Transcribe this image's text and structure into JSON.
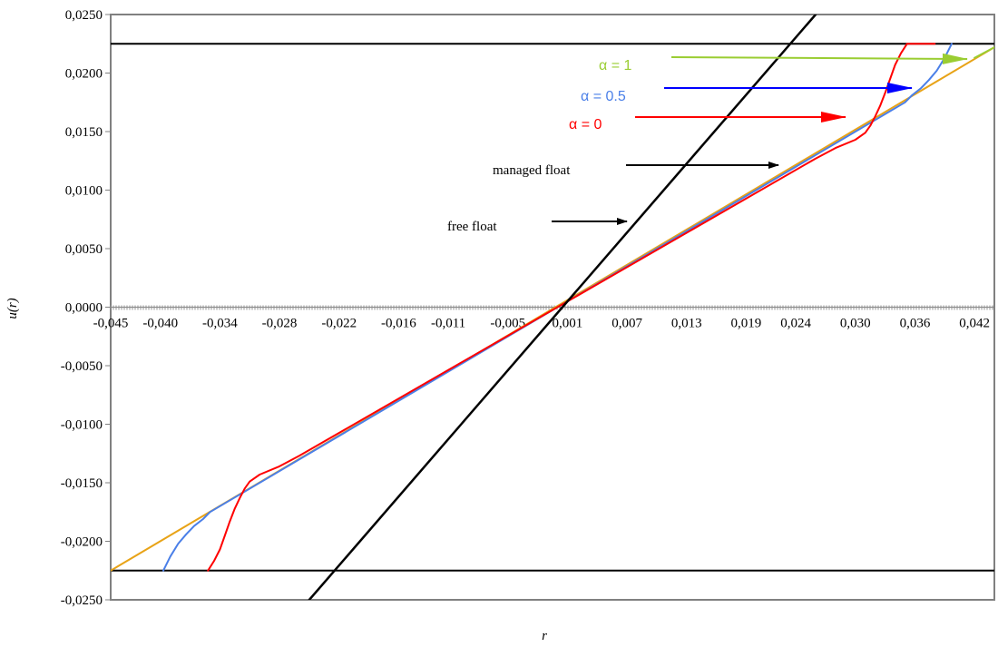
{
  "chart_data": {
    "type": "line",
    "title": "",
    "xlabel": "r",
    "ylabel": "u(r)",
    "xlim": [
      -0.045,
      0.044
    ],
    "ylim": [
      -0.025,
      0.025
    ],
    "x_tick_labels": [
      "-0,045",
      "-0,040",
      "-0,034",
      "-0,028",
      "-0,022",
      "-0,016",
      "-0,011",
      "-0,005",
      "0,001",
      "0,007",
      "0,013",
      "0,019",
      "0,024",
      "0,030",
      "0,036",
      "0,042"
    ],
    "x_ticks": [
      -0.045,
      -0.04,
      -0.034,
      -0.028,
      -0.022,
      -0.016,
      -0.011,
      -0.005,
      0.001,
      0.007,
      0.013,
      0.019,
      0.024,
      0.03,
      0.036,
      0.042
    ],
    "y_ticks": [
      0.025,
      0.02,
      0.015,
      0.01,
      0.005,
      0.0,
      -0.005,
      -0.01,
      -0.015,
      -0.02,
      -0.025
    ],
    "y_tick_labels": [
      "0,0250",
      "0,0200",
      "0,0150",
      "0,0100",
      "0,0050",
      "0,0000",
      "-0,0050",
      "-0,0100",
      "-0,0150",
      "-0,0200",
      "-0,0250"
    ],
    "grid": false,
    "series": [
      {
        "name": "free float",
        "color": "#000000",
        "x": [
          -0.025,
          0.026
        ],
        "y": [
          -0.025,
          0.025
        ]
      },
      {
        "name": "managed float",
        "color": "#E8A317",
        "x": [
          -0.045,
          0.044
        ],
        "y": [
          -0.0225,
          0.0222
        ]
      },
      {
        "name": "α = 0",
        "color": "#FF0000",
        "x": [
          -0.0352,
          -0.0346,
          -0.034,
          -0.0335,
          -0.033,
          -0.0325,
          -0.032,
          -0.0315,
          -0.031,
          -0.03,
          -0.028,
          -0.026,
          0.026,
          0.028,
          0.03,
          0.031,
          0.0315,
          0.032,
          0.0325,
          0.033,
          0.0335,
          0.034,
          0.0346,
          0.0352,
          0.038
        ],
        "y": [
          -0.0225,
          -0.0217,
          -0.0207,
          -0.0195,
          -0.0183,
          -0.0172,
          -0.0163,
          -0.0155,
          -0.0149,
          -0.0143,
          -0.0136,
          -0.0127,
          0.0127,
          0.0136,
          0.0143,
          0.0149,
          0.0155,
          0.0163,
          0.0172,
          0.0183,
          0.0195,
          0.0207,
          0.0217,
          0.0225,
          0.0225
        ]
      },
      {
        "name": "α = 0.5",
        "color": "#4A7FE8",
        "x": [
          -0.0397,
          -0.039,
          -0.0382,
          -0.0374,
          -0.0366,
          -0.0357,
          -0.035,
          0.035,
          0.0357,
          0.0366,
          0.0374,
          0.0382,
          0.039,
          0.0397
        ],
        "y": [
          -0.0225,
          -0.0213,
          -0.0202,
          -0.0194,
          -0.0187,
          -0.0181,
          -0.0175,
          0.0175,
          0.0181,
          0.0187,
          0.0194,
          0.0202,
          0.0213,
          0.0225
        ]
      },
      {
        "name": "α = 1",
        "color": "#9ACD32",
        "x": [
          0.042,
          0.044
        ],
        "y": [
          0.0213,
          0.0222
        ]
      }
    ],
    "bands": [
      {
        "y": 0.0225,
        "color": "#000000"
      },
      {
        "y": -0.0225,
        "color": "#000000"
      }
    ],
    "annotations": [
      {
        "text": "α = 1",
        "color": "#9ACD32"
      },
      {
        "text": "α = 0.5",
        "color": "#4A7FE8"
      },
      {
        "text": "α = 0",
        "color": "#FF0000"
      },
      {
        "text": "managed float",
        "color": "#000000"
      },
      {
        "text": "free float",
        "color": "#000000"
      }
    ]
  }
}
